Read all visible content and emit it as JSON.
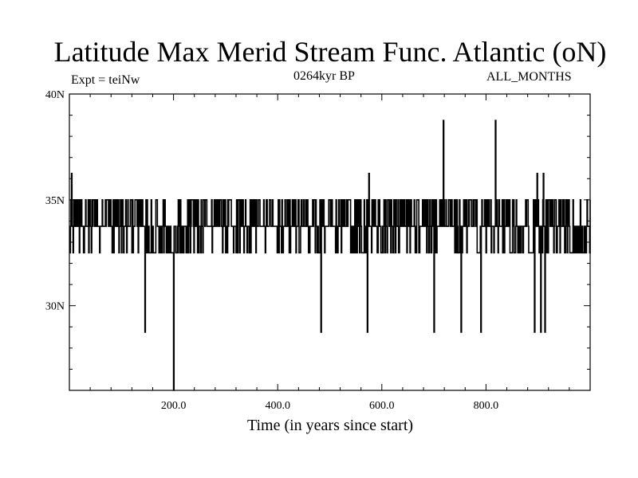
{
  "chart_data": {
    "type": "line",
    "title": "Latitude Max Merid Stream Func. Atlantic (oN)",
    "subtitle": "0264kyr BP",
    "expt_label": "Expt = teiNw",
    "period_label": "ALL_MONTHS",
    "xlabel": "Time (in years since start)",
    "ylabel": "",
    "xlim": [
      0,
      1000
    ],
    "ylim": [
      26,
      40
    ],
    "x_ticks": [
      200,
      400,
      600,
      800
    ],
    "x_tick_labels": [
      "200.0",
      "400.0",
      "600.0",
      "800.0"
    ],
    "y_ticks": [
      30,
      35,
      40
    ],
    "y_tick_labels": [
      "30N",
      "35N",
      "40N"
    ],
    "grid": false,
    "series": [
      {
        "base": 33.75,
        "levels": [
          32.5,
          33.75,
          35.0
        ],
        "spikes": [
          {
            "x": 4,
            "y": 36.25
          },
          {
            "x": 145,
            "y": 28.75
          },
          {
            "x": 200,
            "y": 26.0
          },
          {
            "x": 483,
            "y": 28.75
          },
          {
            "x": 572,
            "y": 28.75
          },
          {
            "x": 575,
            "y": 36.25
          },
          {
            "x": 700,
            "y": 28.75
          },
          {
            "x": 718,
            "y": 38.75
          },
          {
            "x": 752,
            "y": 28.75
          },
          {
            "x": 790,
            "y": 28.75
          },
          {
            "x": 818,
            "y": 38.75
          },
          {
            "x": 893,
            "y": 28.75
          },
          {
            "x": 898,
            "y": 36.25
          },
          {
            "x": 905,
            "y": 28.75
          },
          {
            "x": 910,
            "y": 36.25
          },
          {
            "x": 913,
            "y": 28.75
          }
        ],
        "low_segments": [
          [
            0,
            10
          ],
          [
            150,
            165
          ],
          [
            185,
            200
          ],
          [
            200,
            215
          ],
          [
            475,
            482
          ],
          [
            540,
            570
          ],
          [
            690,
            698
          ],
          [
            745,
            750
          ],
          [
            780,
            788
          ],
          [
            845,
            870
          ],
          [
            880,
            890
          ],
          [
            960,
            995
          ]
        ],
        "color": "#000000"
      }
    ]
  }
}
